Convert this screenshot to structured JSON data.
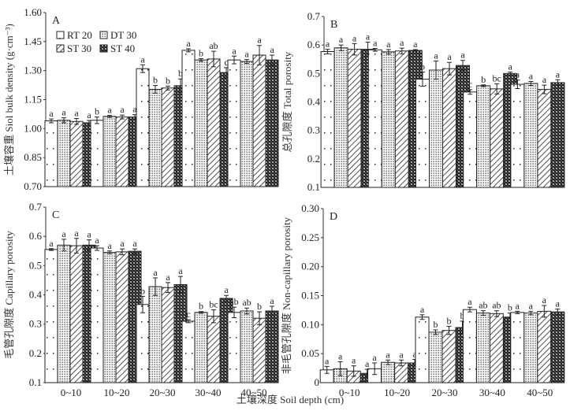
{
  "xlabel": "土壤深度 Soil depth (cm)",
  "legend": [
    {
      "name": "RT 20",
      "pattern": "dots-sparse"
    },
    {
      "name": "DT 30",
      "pattern": "dots-dense"
    },
    {
      "name": "ST 30",
      "pattern": "hatch"
    },
    {
      "name": "ST 40",
      "pattern": "crosshatch-dark"
    }
  ],
  "chart_data": [
    {
      "type": "bar",
      "panel": "A",
      "ylabel": "土壤容重 Siol bulk density (g·cm⁻³)",
      "ylim": [
        0.7,
        1.6
      ],
      "yticks": [
        "0.70",
        "0.85",
        "1.00",
        "1.15",
        "1.30",
        "1.45",
        "1.60"
      ],
      "categories": [
        "0~10",
        "10~20",
        "20~30",
        "30~40",
        "40~50"
      ],
      "show_xticks": false,
      "legend": "top-left",
      "series": [
        {
          "name": "RT 20",
          "values": [
            1.04,
            1.043,
            1.31,
            1.405,
            1.355
          ],
          "err": [
            0.01,
            0.017,
            0.02,
            0.008,
            0.02
          ],
          "sig": [
            "a",
            "b",
            "a",
            "a",
            "a"
          ]
        },
        {
          "name": "DT 30",
          "values": [
            1.043,
            1.063,
            1.203,
            1.355,
            1.347
          ],
          "err": [
            0.013,
            0.005,
            0.02,
            0.007,
            0.01
          ],
          "sig": [
            "a",
            "a",
            "b",
            "b",
            "a"
          ]
        },
        {
          "name": "ST 30",
          "values": [
            1.037,
            1.06,
            1.21,
            1.36,
            1.38
          ],
          "err": [
            0.015,
            0.01,
            0.01,
            0.04,
            0.05
          ],
          "sig": [
            "a",
            "a",
            "b",
            "ab",
            "a"
          ]
        },
        {
          "name": "ST 40",
          "values": [
            1.03,
            1.06,
            1.222,
            1.29,
            1.355
          ],
          "err": [
            0.012,
            0.012,
            0.035,
            0.025,
            0.025
          ],
          "sig": [
            "a",
            "a",
            "b",
            "c",
            "a"
          ]
        }
      ]
    },
    {
      "type": "bar",
      "panel": "B",
      "ylabel": "总孔隙度 Total porosity",
      "ylim": [
        0.1,
        0.7
      ],
      "yticks": [
        "0.1",
        "0.2",
        "0.3",
        "0.4",
        "0.5",
        "0.6",
        "0.7"
      ],
      "categories": [
        "0~10",
        "10~20",
        "20~30",
        "30~40",
        "40~50"
      ],
      "show_xticks": false,
      "series": [
        {
          "name": "RT 20",
          "values": [
            0.577,
            0.583,
            0.48,
            0.435,
            0.462
          ],
          "err": [
            0.008,
            0.005,
            0.025,
            0.008,
            0.015
          ],
          "sig": [
            "a",
            "a",
            "b",
            "c",
            "a"
          ]
        },
        {
          "name": "DT 30",
          "values": [
            0.59,
            0.576,
            0.512,
            0.457,
            0.465
          ],
          "err": [
            0.01,
            0.008,
            0.032,
            0.003,
            0.007
          ],
          "sig": [
            "a",
            "a",
            "a",
            "b",
            "a"
          ]
        },
        {
          "name": "ST 30",
          "values": [
            0.585,
            0.579,
            0.517,
            0.446,
            0.444
          ],
          "err": [
            0.02,
            0.01,
            0.022,
            0.018,
            0.015
          ],
          "sig": [
            "a",
            "a",
            "a",
            "bc",
            "a"
          ]
        },
        {
          "name": "ST 40",
          "values": [
            0.585,
            0.581,
            0.528,
            0.5,
            0.468
          ],
          "err": [
            0.025,
            0.003,
            0.018,
            0.005,
            0.01
          ],
          "sig": [
            "a",
            "a",
            "a",
            "a",
            "a"
          ]
        }
      ]
    },
    {
      "type": "bar",
      "panel": "C",
      "ylabel": "毛管孔隙度 Capillary porosity",
      "ylim": [
        0.1,
        0.7
      ],
      "yticks": [
        "0.1",
        "0.2",
        "0.3",
        "0.4",
        "0.5",
        "0.6",
        "0.7"
      ],
      "categories": [
        "0~10",
        "10~20",
        "20~30",
        "30~40",
        "40~50"
      ],
      "show_xticks": true,
      "series": [
        {
          "name": "RT 20",
          "values": [
            0.555,
            0.56,
            0.367,
            0.31,
            0.34
          ],
          "err": [
            0.003,
            0.008,
            0.028,
            0.005,
            0.018
          ],
          "sig": [
            "a",
            "a",
            "b",
            "c",
            "ab"
          ]
        },
        {
          "name": "DT 30",
          "values": [
            0.57,
            0.545,
            0.428,
            0.34,
            0.345
          ],
          "err": [
            0.02,
            0.005,
            0.03,
            0.003,
            0.01
          ],
          "sig": [
            "a",
            "a",
            "a",
            "b",
            "ab"
          ]
        },
        {
          "name": "ST 30",
          "values": [
            0.568,
            0.547,
            0.425,
            0.327,
            0.32
          ],
          "err": [
            0.025,
            0.01,
            0.017,
            0.022,
            0.022
          ],
          "sig": [
            "a",
            "a",
            "a",
            "bc",
            "b"
          ]
        },
        {
          "name": "ST 40",
          "values": [
            0.57,
            0.549,
            0.435,
            0.388,
            0.345
          ],
          "err": [
            0.018,
            0.008,
            0.028,
            0.01,
            0.016
          ],
          "sig": [
            "a",
            "a",
            "a",
            "a",
            "a"
          ]
        }
      ]
    },
    {
      "type": "bar",
      "panel": "D",
      "ylabel": "非毛管孔隙度 Non-capillary porosity",
      "ylim": [
        0,
        0.3
      ],
      "yticks": [
        "0",
        "0.05",
        "0.10",
        "0.15",
        "0.20",
        "0.25",
        "0.30"
      ],
      "categories": [
        "0~10",
        "10~20",
        "20~30",
        "30~40",
        "40~50"
      ],
      "show_xticks": true,
      "series": [
        {
          "name": "RT 20",
          "values": [
            0.022,
            0.024,
            0.113,
            0.126,
            0.121
          ],
          "err": [
            0.006,
            0.01,
            0.004,
            0.004,
            0.002
          ],
          "sig": [
            "a",
            "a",
            "a",
            "a",
            "a"
          ]
        },
        {
          "name": "DT 30",
          "values": [
            0.024,
            0.035,
            0.087,
            0.12,
            0.12
          ],
          "err": [
            0.012,
            0.004,
            0.004,
            0.004,
            0.003
          ],
          "sig": [
            "a",
            "a",
            "b",
            "ab",
            "a"
          ]
        },
        {
          "name": "ST 30",
          "values": [
            0.02,
            0.034,
            0.09,
            0.119,
            0.123
          ],
          "err": [
            0.009,
            0.005,
            0.007,
            0.005,
            0.01
          ],
          "sig": [
            "a",
            "a",
            "b",
            "ab",
            "a"
          ]
        },
        {
          "name": "ST 40",
          "values": [
            0.016,
            0.034,
            0.095,
            0.113,
            0.122
          ],
          "err": [
            0.007,
            0.006,
            0.011,
            0.007,
            0.005
          ],
          "sig": [
            "a",
            "a",
            "b",
            "b",
            "a"
          ]
        }
      ]
    }
  ]
}
